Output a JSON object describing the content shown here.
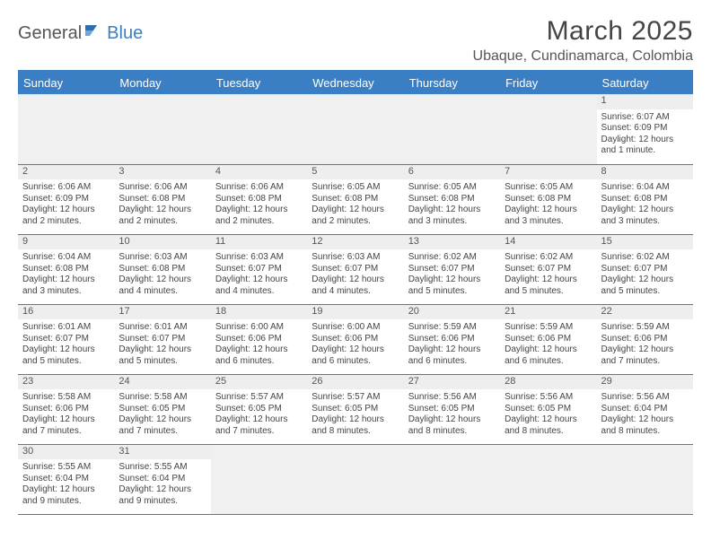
{
  "logo": {
    "part1": "General",
    "part2": "Blue",
    "icon_color": "#2f6fb0"
  },
  "title": "March 2025",
  "location": "Ubaque, Cundinamarca, Colombia",
  "colors": {
    "header_bg": "#3a7fc4",
    "row_divider": "#3a7fc4",
    "daynum_bg": "#eeeeee"
  },
  "weekdays": [
    "Sunday",
    "Monday",
    "Tuesday",
    "Wednesday",
    "Thursday",
    "Friday",
    "Saturday"
  ],
  "weeks": [
    [
      null,
      null,
      null,
      null,
      null,
      null,
      {
        "n": "1",
        "sr": "Sunrise: 6:07 AM",
        "ss": "Sunset: 6:09 PM",
        "dl": "Daylight: 12 hours and 1 minute."
      }
    ],
    [
      {
        "n": "2",
        "sr": "Sunrise: 6:06 AM",
        "ss": "Sunset: 6:09 PM",
        "dl": "Daylight: 12 hours and 2 minutes."
      },
      {
        "n": "3",
        "sr": "Sunrise: 6:06 AM",
        "ss": "Sunset: 6:08 PM",
        "dl": "Daylight: 12 hours and 2 minutes."
      },
      {
        "n": "4",
        "sr": "Sunrise: 6:06 AM",
        "ss": "Sunset: 6:08 PM",
        "dl": "Daylight: 12 hours and 2 minutes."
      },
      {
        "n": "5",
        "sr": "Sunrise: 6:05 AM",
        "ss": "Sunset: 6:08 PM",
        "dl": "Daylight: 12 hours and 2 minutes."
      },
      {
        "n": "6",
        "sr": "Sunrise: 6:05 AM",
        "ss": "Sunset: 6:08 PM",
        "dl": "Daylight: 12 hours and 3 minutes."
      },
      {
        "n": "7",
        "sr": "Sunrise: 6:05 AM",
        "ss": "Sunset: 6:08 PM",
        "dl": "Daylight: 12 hours and 3 minutes."
      },
      {
        "n": "8",
        "sr": "Sunrise: 6:04 AM",
        "ss": "Sunset: 6:08 PM",
        "dl": "Daylight: 12 hours and 3 minutes."
      }
    ],
    [
      {
        "n": "9",
        "sr": "Sunrise: 6:04 AM",
        "ss": "Sunset: 6:08 PM",
        "dl": "Daylight: 12 hours and 3 minutes."
      },
      {
        "n": "10",
        "sr": "Sunrise: 6:03 AM",
        "ss": "Sunset: 6:08 PM",
        "dl": "Daylight: 12 hours and 4 minutes."
      },
      {
        "n": "11",
        "sr": "Sunrise: 6:03 AM",
        "ss": "Sunset: 6:07 PM",
        "dl": "Daylight: 12 hours and 4 minutes."
      },
      {
        "n": "12",
        "sr": "Sunrise: 6:03 AM",
        "ss": "Sunset: 6:07 PM",
        "dl": "Daylight: 12 hours and 4 minutes."
      },
      {
        "n": "13",
        "sr": "Sunrise: 6:02 AM",
        "ss": "Sunset: 6:07 PM",
        "dl": "Daylight: 12 hours and 5 minutes."
      },
      {
        "n": "14",
        "sr": "Sunrise: 6:02 AM",
        "ss": "Sunset: 6:07 PM",
        "dl": "Daylight: 12 hours and 5 minutes."
      },
      {
        "n": "15",
        "sr": "Sunrise: 6:02 AM",
        "ss": "Sunset: 6:07 PM",
        "dl": "Daylight: 12 hours and 5 minutes."
      }
    ],
    [
      {
        "n": "16",
        "sr": "Sunrise: 6:01 AM",
        "ss": "Sunset: 6:07 PM",
        "dl": "Daylight: 12 hours and 5 minutes."
      },
      {
        "n": "17",
        "sr": "Sunrise: 6:01 AM",
        "ss": "Sunset: 6:07 PM",
        "dl": "Daylight: 12 hours and 5 minutes."
      },
      {
        "n": "18",
        "sr": "Sunrise: 6:00 AM",
        "ss": "Sunset: 6:06 PM",
        "dl": "Daylight: 12 hours and 6 minutes."
      },
      {
        "n": "19",
        "sr": "Sunrise: 6:00 AM",
        "ss": "Sunset: 6:06 PM",
        "dl": "Daylight: 12 hours and 6 minutes."
      },
      {
        "n": "20",
        "sr": "Sunrise: 5:59 AM",
        "ss": "Sunset: 6:06 PM",
        "dl": "Daylight: 12 hours and 6 minutes."
      },
      {
        "n": "21",
        "sr": "Sunrise: 5:59 AM",
        "ss": "Sunset: 6:06 PM",
        "dl": "Daylight: 12 hours and 6 minutes."
      },
      {
        "n": "22",
        "sr": "Sunrise: 5:59 AM",
        "ss": "Sunset: 6:06 PM",
        "dl": "Daylight: 12 hours and 7 minutes."
      }
    ],
    [
      {
        "n": "23",
        "sr": "Sunrise: 5:58 AM",
        "ss": "Sunset: 6:06 PM",
        "dl": "Daylight: 12 hours and 7 minutes."
      },
      {
        "n": "24",
        "sr": "Sunrise: 5:58 AM",
        "ss": "Sunset: 6:05 PM",
        "dl": "Daylight: 12 hours and 7 minutes."
      },
      {
        "n": "25",
        "sr": "Sunrise: 5:57 AM",
        "ss": "Sunset: 6:05 PM",
        "dl": "Daylight: 12 hours and 7 minutes."
      },
      {
        "n": "26",
        "sr": "Sunrise: 5:57 AM",
        "ss": "Sunset: 6:05 PM",
        "dl": "Daylight: 12 hours and 8 minutes."
      },
      {
        "n": "27",
        "sr": "Sunrise: 5:56 AM",
        "ss": "Sunset: 6:05 PM",
        "dl": "Daylight: 12 hours and 8 minutes."
      },
      {
        "n": "28",
        "sr": "Sunrise: 5:56 AM",
        "ss": "Sunset: 6:05 PM",
        "dl": "Daylight: 12 hours and 8 minutes."
      },
      {
        "n": "29",
        "sr": "Sunrise: 5:56 AM",
        "ss": "Sunset: 6:04 PM",
        "dl": "Daylight: 12 hours and 8 minutes."
      }
    ],
    [
      {
        "n": "30",
        "sr": "Sunrise: 5:55 AM",
        "ss": "Sunset: 6:04 PM",
        "dl": "Daylight: 12 hours and 9 minutes."
      },
      {
        "n": "31",
        "sr": "Sunrise: 5:55 AM",
        "ss": "Sunset: 6:04 PM",
        "dl": "Daylight: 12 hours and 9 minutes."
      },
      null,
      null,
      null,
      null,
      null
    ]
  ]
}
